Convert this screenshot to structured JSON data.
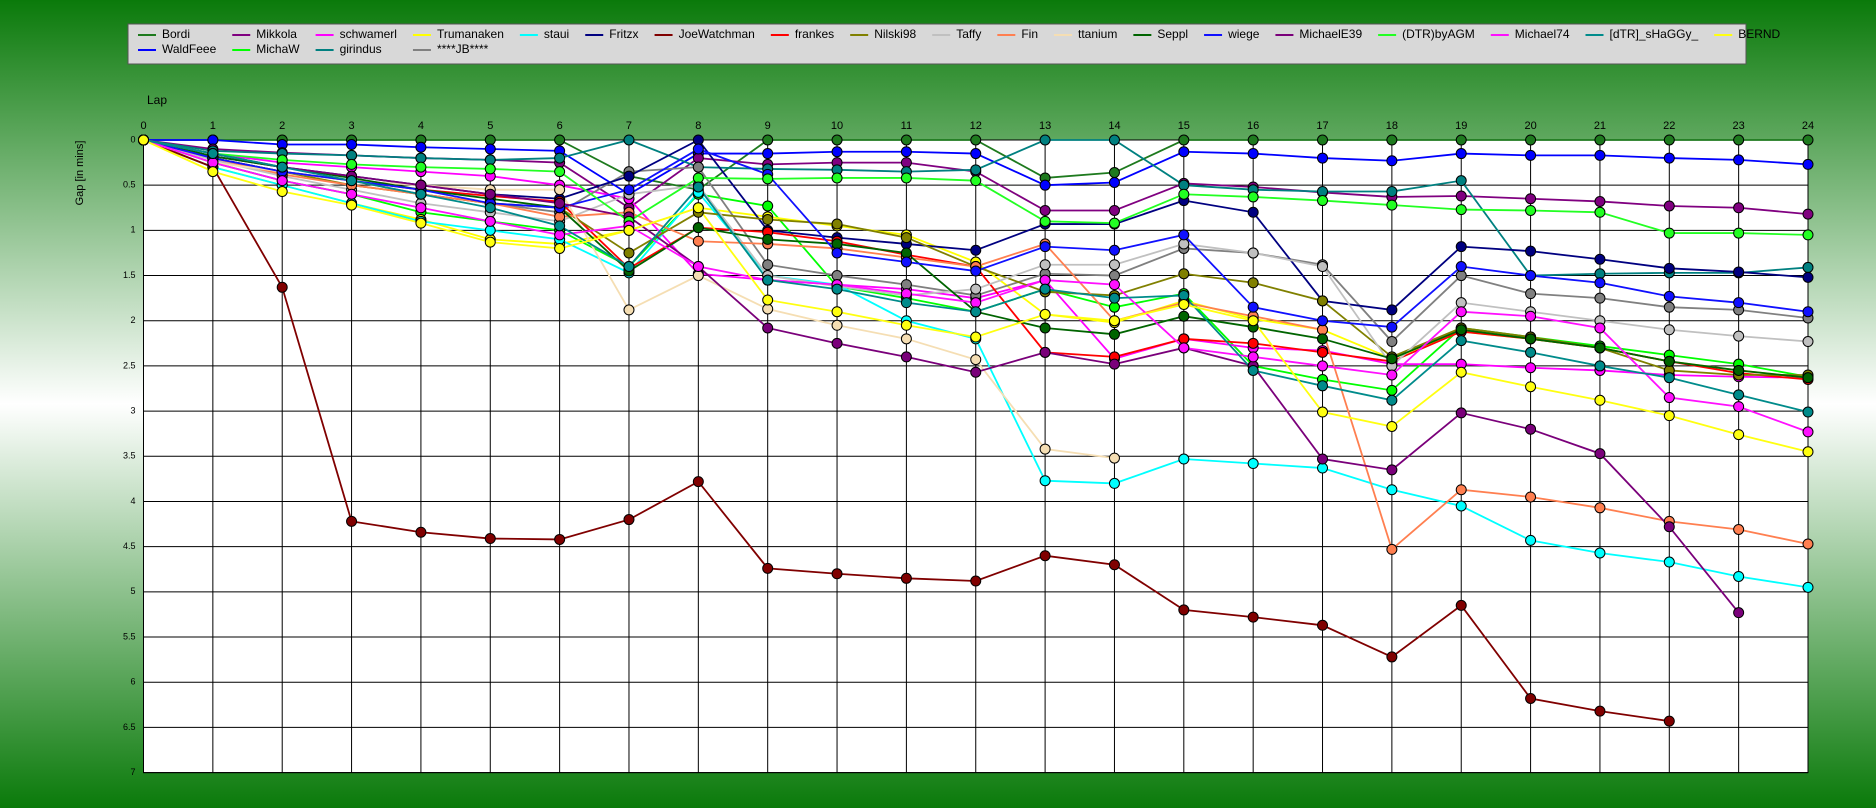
{
  "chart_data": {
    "type": "line",
    "x_label": "Lap",
    "y_label": "Gap [in mins]",
    "x": [
      0,
      1,
      2,
      3,
      4,
      5,
      6,
      7,
      8,
      9,
      10,
      11,
      12,
      13,
      14,
      15,
      16,
      17,
      18,
      19,
      20,
      21,
      22,
      23,
      24
    ],
    "xlim": [
      0,
      24
    ],
    "xticks": [
      0,
      1,
      2,
      3,
      4,
      5,
      6,
      7,
      8,
      9,
      10,
      11,
      12,
      13,
      14,
      15,
      16,
      17,
      18,
      19,
      20,
      21,
      22,
      23,
      24
    ],
    "ylim": [
      0,
      7
    ],
    "y_inverted": true,
    "yticks": [
      0,
      0.5,
      1,
      1.5,
      2,
      2.5,
      3,
      3.5,
      4,
      4.5,
      5,
      5.5,
      6,
      6.5,
      7
    ],
    "grid": true,
    "legend_position": "top",
    "series": [
      {
        "name": "Bordi",
        "color": "#1e7a1e",
        "values": [
          0,
          0,
          0,
          0,
          0,
          0,
          0,
          0.4,
          0.55,
          0,
          0,
          0,
          0,
          0.42,
          0.36,
          0,
          0,
          0,
          0,
          0,
          0,
          0,
          0,
          0,
          0
        ]
      },
      {
        "name": "WaldFeee",
        "color": "#0000ff",
        "values": [
          0,
          0,
          0.05,
          0.05,
          0.08,
          0.1,
          0.12,
          0.6,
          0.15,
          0.15,
          0.13,
          0.13,
          0.15,
          0.5,
          0.47,
          0.13,
          0.15,
          0.2,
          0.23,
          0.15,
          0.17,
          0.17,
          0.2,
          0.22,
          0.27
        ]
      },
      {
        "name": "Mikkola",
        "color": "#800080",
        "values": [
          0,
          0.1,
          0.14,
          0.17,
          0.2,
          0.22,
          0.25,
          0.75,
          0.2,
          0.27,
          0.25,
          0.25,
          0.35,
          0.78,
          0.78,
          0.48,
          0.52,
          0.58,
          0.63,
          0.62,
          0.65,
          0.68,
          0.73,
          0.75,
          0.82
        ]
      },
      {
        "name": "MichaW",
        "color": "#00ff00",
        "values": [
          0,
          0.25,
          0.45,
          0.6,
          0.8,
          0.9,
          1.0,
          1.4,
          0.6,
          0.73,
          1.62,
          1.75,
          1.9,
          1.65,
          1.85,
          1.7,
          2.5,
          2.65,
          2.77,
          2.08,
          2.18,
          2.28,
          2.38,
          2.48,
          2.62
        ]
      },
      {
        "name": "schwamerl",
        "color": "#ff00ff",
        "values": [
          0,
          0.15,
          0.25,
          0.3,
          0.35,
          0.4,
          0.5,
          0.65,
          1.48,
          1.55,
          1.6,
          1.65,
          1.75,
          1.55,
          2.42,
          2.2,
          2.3,
          2.33,
          2.48,
          2.48,
          2.52,
          2.55,
          2.6,
          2.62,
          2.63
        ]
      },
      {
        "name": "girindus",
        "color": "#008080",
        "values": [
          0,
          0.12,
          0.15,
          0.17,
          0.2,
          0.22,
          0.2,
          0,
          0.3,
          0.32,
          0.33,
          0.35,
          0.33,
          0,
          0,
          0.5,
          0.55,
          0.57,
          0.57,
          0.45,
          1.5,
          1.48,
          1.47,
          1.47,
          1.41
        ]
      },
      {
        "name": "Trumanaken",
        "color": "#ffff00",
        "values": [
          0,
          0.3,
          0.5,
          0.7,
          0.88,
          1.1,
          1.15,
          1.0,
          0.75,
          0.85,
          0.95,
          1.05,
          1.35,
          1.93,
          2.02,
          1.78,
          1.98,
          2.1,
          2.42,
          2.12,
          2.2,
          2.3,
          2.45,
          2.55,
          2.63
        ]
      },
      {
        "name": "****JB****",
        "color": "#808080",
        "values": [
          0,
          0.2,
          0.35,
          0.45,
          0.6,
          0.7,
          0.8,
          0.35,
          0.3,
          1.38,
          1.5,
          1.6,
          1.72,
          1.48,
          1.5,
          1.2,
          1.25,
          1.38,
          2.23,
          1.5,
          1.7,
          1.75,
          1.85,
          1.88,
          1.97
        ]
      },
      {
        "name": "staui",
        "color": "#00ffff",
        "values": [
          0,
          0.3,
          0.5,
          0.7,
          0.9,
          1.0,
          1.1,
          1.47,
          0.58,
          1.5,
          1.6,
          2.0,
          2.2,
          3.77,
          3.8,
          3.53,
          3.58,
          3.63,
          3.87,
          4.05,
          4.43,
          4.57,
          4.67,
          4.83,
          4.95
        ]
      },
      {
        "name": "Fritzx",
        "color": "#000080",
        "values": [
          0,
          0.18,
          0.3,
          0.4,
          0.5,
          0.6,
          0.65,
          0.4,
          0,
          1.0,
          1.08,
          1.15,
          1.22,
          0.93,
          0.93,
          0.67,
          0.8,
          1.78,
          1.88,
          1.18,
          1.23,
          1.32,
          1.42,
          1.46,
          1.52
        ]
      },
      {
        "name": "JoeWatchman",
        "color": "#800000",
        "values": [
          0,
          0.3,
          1.63,
          4.22,
          4.34,
          4.41,
          4.42,
          4.2,
          3.78,
          4.74,
          4.8,
          4.85,
          4.88,
          4.6,
          4.7,
          5.2,
          5.28,
          5.37,
          5.72,
          5.15,
          6.18,
          6.32,
          6.43,
          null,
          null
        ]
      },
      {
        "name": "frankes",
        "color": "#ff0000",
        "values": [
          0,
          0.2,
          0.35,
          0.45,
          0.55,
          0.62,
          0.68,
          1.42,
          0.97,
          1.02,
          1.12,
          1.27,
          1.4,
          2.35,
          2.4,
          2.2,
          2.25,
          2.35,
          2.45,
          2.12,
          2.2,
          2.3,
          2.45,
          2.58,
          2.65
        ]
      },
      {
        "name": "Nilski98",
        "color": "#808000",
        "values": [
          0,
          0.2,
          0.35,
          0.5,
          0.6,
          0.7,
          0.75,
          1.25,
          0.8,
          0.88,
          0.93,
          1.08,
          1.4,
          1.68,
          1.72,
          1.48,
          1.58,
          1.78,
          2.4,
          2.08,
          2.18,
          2.3,
          2.55,
          2.6,
          2.6
        ]
      },
      {
        "name": "Taffy",
        "color": "#c0c0c0",
        "values": [
          0,
          0.22,
          0.4,
          0.55,
          0.7,
          0.8,
          0.9,
          0.6,
          0.5,
          1.5,
          1.62,
          1.72,
          1.65,
          1.38,
          1.38,
          1.15,
          1.25,
          1.4,
          2.5,
          1.8,
          1.9,
          2.0,
          2.1,
          2.17,
          2.23
        ]
      },
      {
        "name": "Fin",
        "color": "#ff7f50",
        "values": [
          0,
          0.2,
          0.38,
          0.5,
          0.6,
          0.7,
          0.85,
          0.8,
          1.12,
          1.15,
          1.2,
          1.3,
          1.4,
          1.15,
          2.0,
          1.8,
          1.95,
          2.1,
          4.53,
          3.87,
          3.95,
          4.07,
          4.22,
          4.31,
          4.47
        ]
      },
      {
        "name": "ttanium",
        "color": "#f5deb3",
        "values": [
          0,
          0.25,
          0.35,
          0.45,
          0.5,
          0.55,
          0.55,
          1.88,
          1.5,
          1.87,
          2.05,
          2.2,
          2.43,
          3.42,
          3.52,
          null,
          null,
          null,
          null,
          null,
          null,
          null,
          null,
          null,
          null
        ]
      },
      {
        "name": "Seppl",
        "color": "#006400",
        "values": [
          0,
          0.18,
          0.3,
          0.42,
          0.55,
          0.65,
          0.75,
          1.45,
          0.97,
          1.1,
          1.15,
          1.25,
          1.9,
          2.08,
          2.15,
          1.95,
          2.07,
          2.2,
          2.42,
          2.1,
          2.2,
          2.3,
          2.45,
          2.55,
          2.63
        ]
      },
      {
        "name": "wiege",
        "color": "#1010ff",
        "values": [
          0,
          0.2,
          0.35,
          0.45,
          0.55,
          0.7,
          0.75,
          0.55,
          0.1,
          0.38,
          1.25,
          1.35,
          1.45,
          1.18,
          1.22,
          1.05,
          1.85,
          2.0,
          2.07,
          1.4,
          1.5,
          1.58,
          1.73,
          1.8,
          1.9
        ]
      },
      {
        "name": "MichaelE39",
        "color": "#7a007a",
        "values": [
          0,
          0.15,
          0.3,
          0.4,
          0.5,
          0.6,
          0.7,
          0.85,
          1.4,
          2.08,
          2.25,
          2.4,
          2.57,
          2.35,
          2.48,
          2.3,
          2.5,
          3.53,
          3.65,
          3.02,
          3.2,
          3.47,
          4.28,
          5.23,
          null
        ]
      },
      {
        "name": "(DTR)byAGM",
        "color": "#22ff22",
        "values": [
          0,
          0.15,
          0.22,
          0.27,
          0.3,
          0.32,
          0.35,
          0.9,
          0.42,
          0.43,
          0.42,
          0.42,
          0.45,
          0.9,
          0.92,
          0.6,
          0.63,
          0.67,
          0.72,
          0.77,
          0.78,
          0.8,
          1.03,
          1.03,
          1.05
        ]
      },
      {
        "name": "Michael74",
        "color": "#ff10ff",
        "values": [
          0,
          0.25,
          0.45,
          0.6,
          0.75,
          0.9,
          1.05,
          0.95,
          1.4,
          1.55,
          1.6,
          1.7,
          1.8,
          1.55,
          1.6,
          2.3,
          2.4,
          2.5,
          2.6,
          1.9,
          1.95,
          2.08,
          2.85,
          2.95,
          3.23
        ]
      },
      {
        "name": "[dTR]_sHaGGy_",
        "color": "#008b8b",
        "values": [
          0,
          0.15,
          0.3,
          0.45,
          0.6,
          0.75,
          0.95,
          1.4,
          0.52,
          1.55,
          1.65,
          1.8,
          1.9,
          1.65,
          1.75,
          1.72,
          2.55,
          2.72,
          2.88,
          2.22,
          2.35,
          2.5,
          2.63,
          2.82,
          3.01
        ]
      },
      {
        "name": "BERND",
        "color": "#ffff10",
        "values": [
          0,
          0.35,
          0.57,
          0.72,
          0.92,
          1.13,
          1.2,
          1.0,
          0.75,
          1.77,
          1.9,
          2.05,
          2.18,
          1.93,
          2.0,
          1.82,
          2.0,
          3.01,
          3.17,
          2.57,
          2.73,
          2.88,
          3.05,
          3.26,
          3.45
        ]
      }
    ]
  }
}
